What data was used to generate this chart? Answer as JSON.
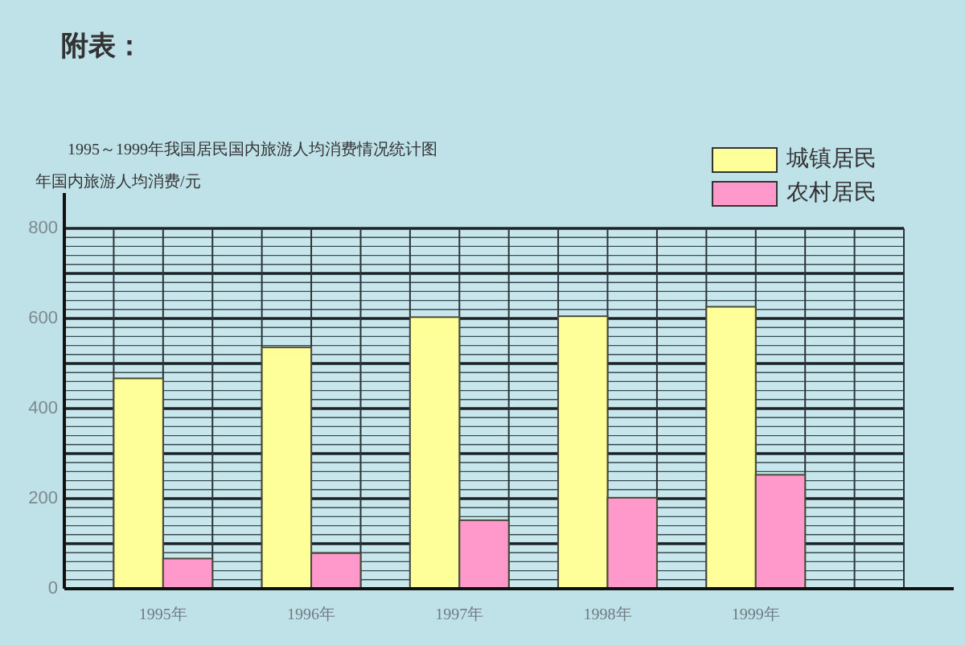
{
  "chart_data": {
    "type": "bar",
    "title": "附表：",
    "subtitle": "1995～1999年我国居民国内旅游人均消费情况统计图",
    "ylabel": "年国内旅游人均消费/元",
    "categories": [
      "1995年",
      "1996年",
      "1997年",
      "1998年",
      "1999年"
    ],
    "series": [
      {
        "name": "城镇居民",
        "color": "#ffff99",
        "values": [
          467,
          536,
          603,
          605,
          626
        ]
      },
      {
        "name": "农村居民",
        "color": "#ff99cc",
        "values": [
          67,
          79,
          152,
          202,
          253
        ]
      }
    ],
    "ylim": [
      0,
      800
    ],
    "yticks": [
      0,
      {
        "value": 100,
        "label": null
      },
      200,
      {
        "value": 300,
        "label": null
      },
      400,
      {
        "value": 500,
        "label": null
      },
      600,
      {
        "value": 700,
        "label": null
      },
      800
    ],
    "grid": true,
    "legend": "top right"
  }
}
